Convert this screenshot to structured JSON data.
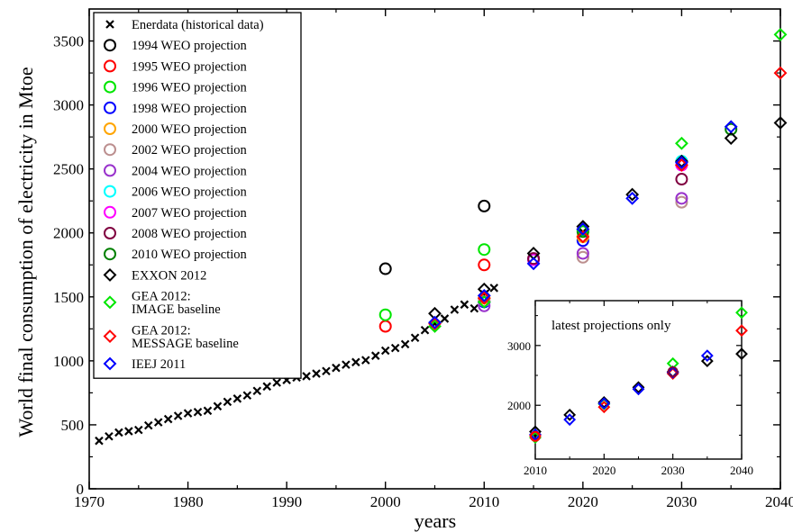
{
  "chart_data": {
    "type": "scatter",
    "xlabel": "years",
    "ylabel": "World final consumption of electricity in Mtoe",
    "xlim": [
      1970,
      2040
    ],
    "ylim": [
      0,
      3750
    ],
    "xticks": [
      1970,
      1980,
      1990,
      2000,
      2010,
      2020,
      2030,
      2040
    ],
    "yticks": [
      0,
      500,
      1000,
      1500,
      2000,
      2500,
      3000,
      3500
    ],
    "legend_position": "top-left",
    "series": [
      {
        "name": "Enerdata (historical data)",
        "marker": "x",
        "color": "#000000",
        "x": [
          1971,
          1972,
          1973,
          1974,
          1975,
          1976,
          1977,
          1978,
          1979,
          1980,
          1981,
          1982,
          1983,
          1984,
          1985,
          1986,
          1987,
          1988,
          1989,
          1990,
          1991,
          1992,
          1993,
          1994,
          1995,
          1996,
          1997,
          1998,
          1999,
          2000,
          2001,
          2002,
          2003,
          2004,
          2005,
          2006,
          2007,
          2008,
          2009,
          2010,
          2011
        ],
        "y": [
          375,
          410,
          440,
          450,
          460,
          495,
          520,
          545,
          570,
          590,
          600,
          610,
          645,
          680,
          705,
          730,
          765,
          800,
          830,
          850,
          870,
          880,
          900,
          920,
          945,
          970,
          990,
          1005,
          1040,
          1080,
          1100,
          1130,
          1180,
          1240,
          1290,
          1330,
          1400,
          1440,
          1410,
          1520,
          1570
        ]
      },
      {
        "name": "1994 WEO projection",
        "marker": "circle",
        "color": "#000000",
        "x": [
          2000,
          2010
        ],
        "y": [
          1720,
          2210
        ]
      },
      {
        "name": "1995 WEO projection",
        "marker": "circle",
        "color": "#ff0000",
        "x": [
          2000,
          2010
        ],
        "y": [
          1270,
          1750
        ]
      },
      {
        "name": "1996 WEO projection",
        "marker": "circle",
        "color": "#00e600",
        "x": [
          2000,
          2010
        ],
        "y": [
          1360,
          1870
        ]
      },
      {
        "name": "1998 WEO projection",
        "marker": "circle",
        "color": "#0000ff",
        "x": [
          2010,
          2020
        ],
        "y": [
          1460,
          1940
        ]
      },
      {
        "name": "2000 WEO projection",
        "marker": "circle",
        "color": "#ffa500",
        "x": [
          2010,
          2020
        ],
        "y": [
          1490,
          1970
        ]
      },
      {
        "name": "2002 WEO projection",
        "marker": "circle",
        "color": "#bc8f8f",
        "x": [
          2010,
          2020,
          2030
        ],
        "y": [
          1470,
          1810,
          2240
        ]
      },
      {
        "name": "2004 WEO projection",
        "marker": "circle",
        "color": "#9932cc",
        "x": [
          2010,
          2020,
          2030
        ],
        "y": [
          1430,
          1840,
          2270
        ]
      },
      {
        "name": "2006 WEO projection",
        "marker": "circle",
        "color": "#00ffff",
        "x": [
          2015,
          2030
        ],
        "y": [
          1790,
          2560
        ]
      },
      {
        "name": "2007 WEO projection",
        "marker": "circle",
        "color": "#ff00ff",
        "x": [
          2015,
          2030
        ],
        "y": [
          1790,
          2530
        ]
      },
      {
        "name": "2008 WEO projection",
        "marker": "circle",
        "color": "#800040",
        "x": [
          2015,
          2030
        ],
        "y": [
          1800,
          2420
        ]
      },
      {
        "name": "2010 WEO projection",
        "marker": "circle",
        "color": "#008000",
        "x": [
          2020,
          2035
        ],
        "y": [
          2010,
          2810
        ]
      },
      {
        "name": "EXXON 2012",
        "marker": "diamond",
        "color": "#000000",
        "x": [
          2005,
          2010,
          2015,
          2020,
          2025,
          2030,
          2035,
          2040
        ],
        "y": [
          1370,
          1560,
          1840,
          2050,
          2300,
          2560,
          2740,
          2860
        ]
      },
      {
        "name": "GEA 2012:\nIMAGE baseline",
        "marker": "diamond",
        "color": "#00e600",
        "x": [
          2005,
          2010,
          2020,
          2030,
          2040
        ],
        "y": [
          1270,
          1460,
          2020,
          2700,
          3550
        ]
      },
      {
        "name": "GEA 2012:\nMESSAGE baseline",
        "marker": "diamond",
        "color": "#ff0000",
        "x": [
          2005,
          2010,
          2020,
          2030,
          2040
        ],
        "y": [
          1290,
          1490,
          1970,
          2530,
          3250
        ]
      },
      {
        "name": "IEEJ 2011",
        "marker": "diamond",
        "color": "#0000ff",
        "x": [
          2005,
          2010,
          2015,
          2020,
          2025,
          2030,
          2035
        ],
        "y": [
          1300,
          1510,
          1760,
          2030,
          2270,
          2550,
          2830
        ]
      }
    ],
    "inset": {
      "title": "latest projections only",
      "xlim": [
        2010,
        2040
      ],
      "ylim": [
        1100,
        3750
      ],
      "xticks": [
        2010,
        2020,
        2030,
        2040
      ],
      "yticks": [
        2000,
        3000
      ],
      "series_shown": [
        "EXXON 2012",
        "GEA 2012:\nIMAGE baseline",
        "GEA 2012:\nMESSAGE baseline",
        "IEEJ 2011"
      ],
      "extra_points": [
        {
          "color": "#ff0000",
          "marker": "circle",
          "x": 2010,
          "y": 1480
        },
        {
          "color": "#800040",
          "marker": "circle",
          "x": 2030,
          "y": 2560
        }
      ]
    }
  }
}
